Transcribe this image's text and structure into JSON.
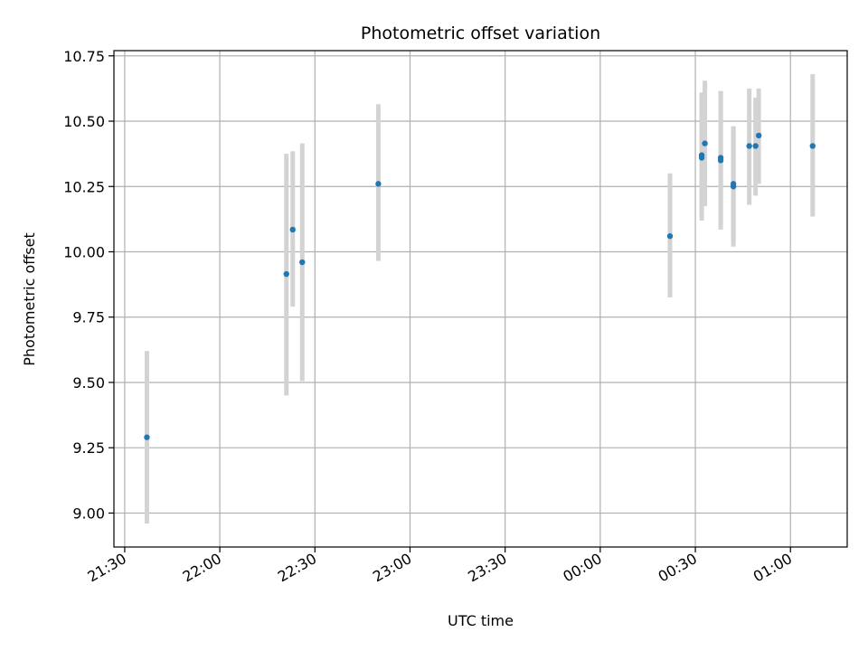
{
  "chart_data": {
    "type": "scatter",
    "title": "Photometric offset variation",
    "xlabel": "UTC time",
    "ylabel": "Photometric offset",
    "x_ticks": [
      "21:30",
      "22:00",
      "22:30",
      "23:00",
      "23:30",
      "00:00",
      "00:30",
      "01:00"
    ],
    "y_ticks": [
      "9.00",
      "9.25",
      "9.50",
      "9.75",
      "10.00",
      "10.25",
      "10.50",
      "10.75"
    ],
    "x_range_minutes": [
      -3.4,
      227.9
    ],
    "x_tick_minutes": [
      0,
      30,
      60,
      90,
      120,
      150,
      180,
      210
    ],
    "ylim": [
      8.87,
      10.77
    ],
    "grid": true,
    "colors": {
      "point": "#1f77b4",
      "errorbar": "#d3d3d3",
      "grid": "#b0b0b0"
    },
    "points": [
      {
        "time": "21:37",
        "y": 9.29,
        "yerr_low": 8.96,
        "yerr_high": 9.62
      },
      {
        "time": "22:21",
        "y": 9.915,
        "yerr_low": 9.45,
        "yerr_high": 10.375
      },
      {
        "time": "22:23",
        "y": 10.085,
        "yerr_low": 9.79,
        "yerr_high": 10.385
      },
      {
        "time": "22:26",
        "y": 9.96,
        "yerr_low": 9.505,
        "yerr_high": 10.415
      },
      {
        "time": "22:50",
        "y": 10.26,
        "yerr_low": 9.965,
        "yerr_high": 10.565
      },
      {
        "time": "00:22",
        "y": 10.06,
        "yerr_low": 9.825,
        "yerr_high": 10.3
      },
      {
        "time": "00:32",
        "y": 10.36,
        "yerr_low": 10.12,
        "yerr_high": 10.61
      },
      {
        "time": "00:32",
        "y": 10.37,
        "yerr_low": 10.14,
        "yerr_high": 10.605
      },
      {
        "time": "00:33",
        "y": 10.415,
        "yerr_low": 10.175,
        "yerr_high": 10.655
      },
      {
        "time": "00:38",
        "y": 10.35,
        "yerr_low": 10.085,
        "yerr_high": 10.615
      },
      {
        "time": "00:38",
        "y": 10.36,
        "yerr_low": 10.11,
        "yerr_high": 10.615
      },
      {
        "time": "00:42",
        "y": 10.25,
        "yerr_low": 10.02,
        "yerr_high": 10.48
      },
      {
        "time": "00:42",
        "y": 10.26,
        "yerr_low": 10.04,
        "yerr_high": 10.48
      },
      {
        "time": "00:47",
        "y": 10.405,
        "yerr_low": 10.18,
        "yerr_high": 10.625
      },
      {
        "time": "00:49",
        "y": 10.405,
        "yerr_low": 10.215,
        "yerr_high": 10.59
      },
      {
        "time": "00:50",
        "y": 10.445,
        "yerr_low": 10.26,
        "yerr_high": 10.625
      },
      {
        "time": "01:07",
        "y": 10.405,
        "yerr_low": 10.135,
        "yerr_high": 10.68
      }
    ]
  }
}
